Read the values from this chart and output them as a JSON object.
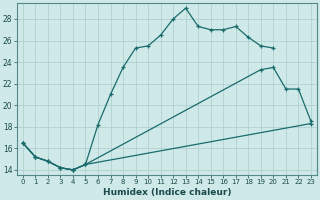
{
  "xlabel": "Humidex (Indice chaleur)",
  "bg_color": "#cfe9e9",
  "grid_color": "#b0d0d0",
  "line_color": "#1a6b6b",
  "xlim": [
    -0.5,
    23.5
  ],
  "ylim": [
    13.5,
    29.5
  ],
  "xticks": [
    0,
    1,
    2,
    3,
    4,
    5,
    6,
    7,
    8,
    9,
    10,
    11,
    12,
    13,
    14,
    15,
    16,
    17,
    18,
    19,
    20,
    21,
    22,
    23
  ],
  "yticks": [
    14,
    16,
    18,
    20,
    22,
    24,
    26,
    28
  ],
  "series1_x": [
    0,
    1,
    2,
    3,
    4,
    5,
    6,
    7,
    8,
    9,
    10,
    11,
    12,
    13,
    14,
    15,
    16,
    17,
    18,
    19,
    20
  ],
  "series1_y": [
    16.5,
    15.2,
    14.8,
    14.2,
    14.0,
    14.5,
    18.2,
    21.0,
    23.5,
    25.3,
    25.5,
    26.5,
    28.0,
    29.0,
    27.3,
    27.0,
    27.0,
    27.3,
    26.3,
    25.5,
    25.3
  ],
  "series2_x": [
    0,
    1,
    2,
    3,
    4,
    5,
    19,
    20,
    21,
    22,
    23
  ],
  "series2_y": [
    16.5,
    15.2,
    14.8,
    14.2,
    14.0,
    14.5,
    23.3,
    23.5,
    21.5,
    21.5,
    18.5
  ],
  "series3_x": [
    0,
    1,
    2,
    3,
    4,
    5,
    23
  ],
  "series3_y": [
    16.5,
    15.2,
    14.8,
    14.2,
    14.0,
    14.5,
    18.3
  ]
}
